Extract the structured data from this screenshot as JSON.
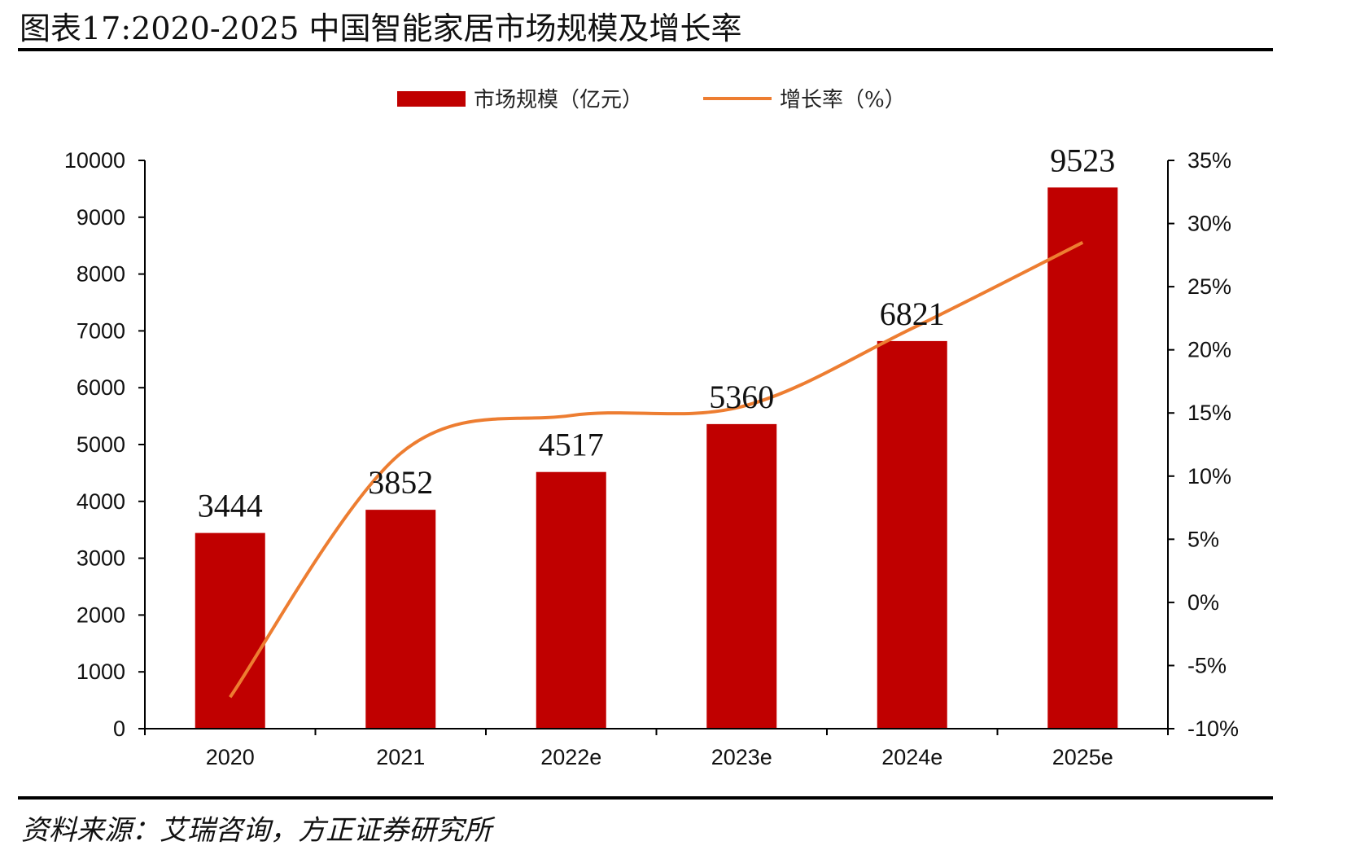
{
  "title": "图表17:2020-2025 中国智能家居市场规模及增长率",
  "source": "资料来源：艾瑞咨询，方正证券研究所",
  "colors": {
    "bar": "#C00000",
    "line": "#ED7D31",
    "axis": "#000000"
  },
  "chart_data": {
    "type": "bar",
    "categories": [
      "2020",
      "2021",
      "2022e",
      "2023e",
      "2024e",
      "2025e"
    ],
    "series": [
      {
        "name": "市场规模（亿元）",
        "type": "bar",
        "axis": "left",
        "values": [
          3444,
          3852,
          4517,
          5360,
          6821,
          9523
        ]
      },
      {
        "name": "增长率（%）",
        "type": "line",
        "axis": "right",
        "values": [
          -7.5,
          11.8,
          14.8,
          15.5,
          21.7,
          28.5
        ]
      }
    ],
    "data_labels": [
      "3444",
      "3852",
      "4517",
      "5360",
      "6821",
      "9523"
    ],
    "y_left": {
      "min": 0,
      "max": 10000,
      "ticks": [
        "0",
        "1000",
        "2000",
        "3000",
        "4000",
        "5000",
        "6000",
        "7000",
        "8000",
        "9000",
        "10000"
      ]
    },
    "y_right": {
      "min": -10,
      "max": 35,
      "ticks": [
        "-10%",
        "-5%",
        "0%",
        "5%",
        "10%",
        "15%",
        "20%",
        "25%",
        "30%",
        "35%"
      ]
    },
    "legend_position": "top-center",
    "grid": false
  }
}
